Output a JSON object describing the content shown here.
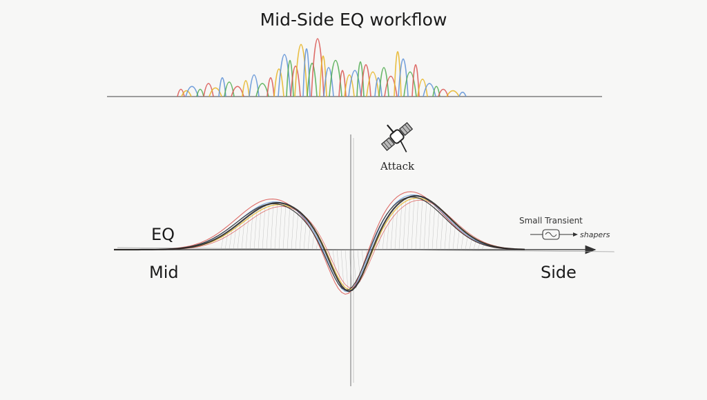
{
  "title": "Mid-Side EQ workflow",
  "labels": {
    "eq": "EQ",
    "mid": "Mid",
    "side": "Side",
    "attack": "Attack",
    "transient": "Small Transient",
    "shapers": "shapers"
  },
  "icons": {
    "attack": "satellite-icon",
    "transient": "transient-shaper-icon"
  },
  "colors": {
    "ink": "#1a1a1a",
    "curve_black": "#222222",
    "curve_red": "#d9534f",
    "curve_yellow": "#e6b422",
    "curve_blue": "#5b8fd6",
    "curve_green": "#4caa4c",
    "background": "#f7f7f6"
  }
}
